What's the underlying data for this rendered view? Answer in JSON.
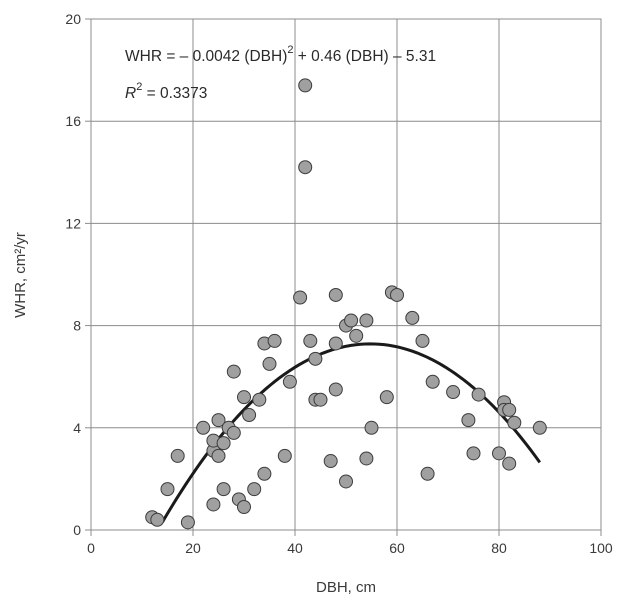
{
  "chart_data": {
    "type": "scatter",
    "xlabel": "DBH, cm",
    "ylabel": "WHR, cm²/yr",
    "xlim": [
      0,
      100
    ],
    "ylim": [
      0,
      20
    ],
    "xticks": [
      0,
      20,
      40,
      60,
      80,
      100
    ],
    "yticks": [
      0,
      4,
      8,
      12,
      16,
      20
    ],
    "x_tick_labels": [
      "0",
      "20",
      "40",
      "60",
      "80",
      "100"
    ],
    "y_tick_labels": [
      "0",
      "4",
      "8",
      "12",
      "16",
      "20"
    ],
    "grid": true,
    "annotation": {
      "equation_prefix": "WHR = – 0.0042 (DBH)",
      "equation_exponent": "2",
      "equation_suffix": " + 0.46 (DBH) – 5.31",
      "r2_letter": "R",
      "r2_exponent": "2",
      "r2_value": " = 0.3373"
    },
    "fit": {
      "type": "quadratic",
      "a": -0.0042,
      "b": 0.46,
      "c": -5.31,
      "x_range": [
        14,
        88
      ]
    },
    "points": [
      {
        "x": 12,
        "y": 0.5
      },
      {
        "x": 13,
        "y": 0.4
      },
      {
        "x": 15,
        "y": 1.6
      },
      {
        "x": 17,
        "y": 2.9
      },
      {
        "x": 19,
        "y": 0.3
      },
      {
        "x": 22,
        "y": 4.0
      },
      {
        "x": 24,
        "y": 1.0
      },
      {
        "x": 24,
        "y": 3.1
      },
      {
        "x": 24,
        "y": 3.5
      },
      {
        "x": 25,
        "y": 2.9
      },
      {
        "x": 25,
        "y": 4.3
      },
      {
        "x": 26,
        "y": 1.6
      },
      {
        "x": 26,
        "y": 3.4
      },
      {
        "x": 27,
        "y": 4.0
      },
      {
        "x": 28,
        "y": 3.8
      },
      {
        "x": 28,
        "y": 6.2
      },
      {
        "x": 29,
        "y": 1.2
      },
      {
        "x": 30,
        "y": 0.9
      },
      {
        "x": 30,
        "y": 5.2
      },
      {
        "x": 31,
        "y": 4.5
      },
      {
        "x": 32,
        "y": 1.6
      },
      {
        "x": 33,
        "y": 5.1
      },
      {
        "x": 34,
        "y": 2.2
      },
      {
        "x": 34,
        "y": 7.3
      },
      {
        "x": 35,
        "y": 6.5
      },
      {
        "x": 36,
        "y": 7.4
      },
      {
        "x": 38,
        "y": 2.9
      },
      {
        "x": 39,
        "y": 5.8
      },
      {
        "x": 41,
        "y": 9.1
      },
      {
        "x": 42,
        "y": 17.4
      },
      {
        "x": 42,
        "y": 14.2
      },
      {
        "x": 43,
        "y": 7.4
      },
      {
        "x": 44,
        "y": 6.7
      },
      {
        "x": 44,
        "y": 5.1
      },
      {
        "x": 45,
        "y": 5.1
      },
      {
        "x": 47,
        "y": 2.7
      },
      {
        "x": 48,
        "y": 9.2
      },
      {
        "x": 48,
        "y": 7.3
      },
      {
        "x": 48,
        "y": 5.5
      },
      {
        "x": 50,
        "y": 8.0
      },
      {
        "x": 50,
        "y": 1.9
      },
      {
        "x": 51,
        "y": 8.2
      },
      {
        "x": 52,
        "y": 7.6
      },
      {
        "x": 54,
        "y": 8.2
      },
      {
        "x": 54,
        "y": 2.8
      },
      {
        "x": 55,
        "y": 4.0
      },
      {
        "x": 58,
        "y": 5.2
      },
      {
        "x": 59,
        "y": 9.3
      },
      {
        "x": 60,
        "y": 9.2
      },
      {
        "x": 63,
        "y": 8.3
      },
      {
        "x": 65,
        "y": 7.4
      },
      {
        "x": 66,
        "y": 2.2
      },
      {
        "x": 67,
        "y": 5.8
      },
      {
        "x": 71,
        "y": 5.4
      },
      {
        "x": 74,
        "y": 4.3
      },
      {
        "x": 75,
        "y": 3.0
      },
      {
        "x": 76,
        "y": 5.3
      },
      {
        "x": 80,
        "y": 3.0
      },
      {
        "x": 81,
        "y": 5.0
      },
      {
        "x": 81,
        "y": 4.7
      },
      {
        "x": 82,
        "y": 4.7
      },
      {
        "x": 82,
        "y": 2.6
      },
      {
        "x": 83,
        "y": 4.2
      },
      {
        "x": 88,
        "y": 4.0
      }
    ]
  }
}
